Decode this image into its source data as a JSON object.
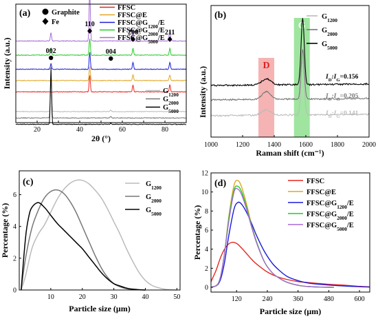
{
  "chart_data": [
    {
      "panel": "(a)",
      "type": "line",
      "xlabel": "2θ (°)",
      "ylabel": "Intensity (a.u.)",
      "xlim": [
        10,
        90
      ],
      "x_ticks": [
        "20",
        "40",
        "60",
        "80"
      ],
      "marker_legend": [
        {
          "label": "Graphite",
          "symbol": "circle"
        },
        {
          "label": "Fe",
          "symbol": "diamond"
        }
      ],
      "peak_labels": [
        {
          "text": "002",
          "x": 26.5,
          "symbol": "circle"
        },
        {
          "text": "110",
          "x": 44.7,
          "symbol": "diamond"
        },
        {
          "text": "004",
          "x": 54.6,
          "symbol": "circle"
        },
        {
          "text": "200",
          "x": 65.0,
          "symbol": "diamond"
        },
        {
          "text": "211",
          "x": 82.3,
          "symbol": "diamond"
        }
      ],
      "legend_upper": [
        {
          "name": "FFSC",
          "color": "#e8251f"
        },
        {
          "name": "FFSC@E",
          "color": "#e0a624"
        },
        {
          "name": "FFSC@G1200/E",
          "base": "FFSC@G",
          "sub": "1200",
          "tail": "/E",
          "color": "#1a1adb"
        },
        {
          "name": "FFSC@G2000/E",
          "base": "FFSC@G",
          "sub": "2000",
          "tail": "/E",
          "color": "#22cc22"
        },
        {
          "name": "FFSC@G5000/E",
          "base": "FFSC@G",
          "sub": "5000",
          "tail": "/E",
          "color": "#a56ad6"
        }
      ],
      "legend_lower": [
        {
          "name": "G1200",
          "base": "G",
          "sub": "1200",
          "color": "#bbbbbb"
        },
        {
          "name": "G2000",
          "base": "G",
          "sub": "2000",
          "color": "#777777"
        },
        {
          "name": "G5000",
          "base": "G",
          "sub": "5000",
          "color": "#000000"
        }
      ],
      "series": [
        {
          "name": "FFSC@G5000/E",
          "color": "#a56ad6",
          "baseline": 5.0,
          "peaks": [
            [
              26.5,
              0.6
            ],
            [
              44.7,
              3.6
            ],
            [
              65.0,
              0.8
            ],
            [
              82.3,
              0.8
            ]
          ]
        },
        {
          "name": "FFSC@G2000/E",
          "color": "#22cc22",
          "baseline": 4.0,
          "peaks": [
            [
              26.5,
              0.5
            ],
            [
              44.7,
              1.2
            ],
            [
              65.0,
              0.5
            ],
            [
              82.3,
              0.5
            ]
          ]
        },
        {
          "name": "FFSC@G1200/E",
          "color": "#1a1adb",
          "baseline": 3.0,
          "peaks": [
            [
              26.5,
              0.4
            ],
            [
              44.7,
              1.2
            ],
            [
              65.0,
              0.5
            ],
            [
              82.3,
              0.5
            ]
          ]
        },
        {
          "name": "FFSC@E",
          "color": "#e0a624",
          "baseline": 2.2,
          "peaks": [
            [
              44.7,
              1.0
            ],
            [
              65.0,
              0.4
            ],
            [
              82.3,
              0.4
            ]
          ]
        },
        {
          "name": "FFSC",
          "color": "#e8251f",
          "baseline": 1.4,
          "peaks": [
            [
              44.7,
              1.2
            ],
            [
              65.0,
              0.5
            ],
            [
              82.3,
              0.5
            ]
          ]
        },
        {
          "name": "G1200",
          "color": "#bbbbbb",
          "baseline": 0.0,
          "peaks": [
            [
              26.5,
              3.2
            ],
            [
              54.6,
              0.1
            ]
          ]
        },
        {
          "name": "G2000",
          "color": "#777777",
          "baseline": -0.45,
          "peaks": [
            [
              26.5,
              3.0
            ],
            [
              54.6,
              0.1
            ]
          ]
        },
        {
          "name": "G5000",
          "color": "#000000",
          "baseline": -0.9,
          "peaks": [
            [
              26.5,
              4.0
            ],
            [
              54.6,
              0.1
            ]
          ]
        }
      ]
    },
    {
      "panel": "(b)",
      "type": "line",
      "xlabel": "Raman shift (cm⁻¹)",
      "ylabel": "Intensity (a.u.)",
      "xlim": [
        1000,
        2000
      ],
      "x_ticks": [
        "1000",
        "1200",
        "1400",
        "1600",
        "1800",
        "2000"
      ],
      "bands": [
        {
          "label": "D",
          "from": 1300,
          "to": 1400,
          "color": "#f4a6a6",
          "text_color": "#e02020"
        },
        {
          "label": "G",
          "from": 1525,
          "to": 1625,
          "color": "#8ee08e",
          "text_color": "#ffffff"
        }
      ],
      "legend": [
        {
          "name": "G1200",
          "base": "G",
          "sub": "1200",
          "color": "#bbbbbb"
        },
        {
          "name": "G2000",
          "base": "G",
          "sub": "2000",
          "color": "#777777"
        },
        {
          "name": "G5000",
          "base": "G",
          "sub": "5000",
          "color": "#000000"
        }
      ],
      "ratio_labels": [
        {
          "series": "G5000",
          "text": "ID:IG=0.156",
          "value": "=0.156",
          "color": "#000000"
        },
        {
          "series": "G2000",
          "text": "ID:IG=0.205",
          "value": "=0.205",
          "color": "#777777"
        },
        {
          "series": "G1200",
          "text": "ID:IG=0.141",
          "value": "=0.141",
          "color": "#bbbbbb"
        }
      ],
      "series": [
        {
          "name": "G5000",
          "color": "#000000",
          "baseline": 2.0,
          "d_height": 0.45,
          "g_height": 2.7
        },
        {
          "name": "G2000",
          "color": "#777777",
          "baseline": 1.0,
          "d_height": 0.55,
          "g_height": 2.0
        },
        {
          "name": "G1200",
          "color": "#bbbbbb",
          "baseline": 0.0,
          "d_height": 0.4,
          "g_height": 2.2
        }
      ]
    },
    {
      "panel": "(c)",
      "type": "line",
      "xlabel": "Particle size (μm)",
      "ylabel": "Percentage (%)",
      "xlim": [
        0,
        51
      ],
      "ylim": [
        0,
        7.5
      ],
      "x_ticks": [
        10,
        20,
        30,
        40,
        50
      ],
      "y_ticks": [
        0,
        2,
        4,
        6
      ],
      "series": [
        {
          "name": "G1200",
          "base": "G",
          "sub": "1200",
          "color": "#bbbbbb",
          "x": [
            0.6,
            2,
            4,
            6,
            8,
            10,
            12,
            14,
            16,
            18,
            20,
            22,
            24,
            26,
            28,
            30,
            32,
            34,
            36,
            38,
            40,
            42,
            44,
            46,
            48,
            50
          ],
          "y": [
            0,
            0.9,
            2.6,
            3.5,
            4.1,
            4.9,
            5.7,
            6.3,
            6.7,
            6.9,
            6.9,
            6.7,
            6.3,
            5.8,
            5.1,
            4.3,
            3.5,
            2.6,
            1.8,
            1.1,
            0.6,
            0.3,
            0.15,
            0.05,
            0.02,
            0
          ]
        },
        {
          "name": "G2000",
          "base": "G",
          "sub": "2000",
          "color": "#777777",
          "x": [
            0.6,
            2,
            4,
            6,
            8,
            10,
            12,
            14,
            16,
            18,
            20,
            22,
            24,
            26,
            28,
            30,
            32,
            34,
            36,
            38,
            40
          ],
          "y": [
            0,
            2.0,
            3.9,
            5.0,
            5.8,
            6.2,
            6.3,
            6.1,
            5.6,
            4.9,
            4.0,
            3.1,
            2.2,
            1.4,
            0.8,
            0.4,
            0.2,
            0.08,
            0.03,
            0.01,
            0
          ]
        },
        {
          "name": "G5000",
          "base": "G",
          "sub": "5000",
          "color": "#000000",
          "x": [
            0.6,
            2,
            3,
            4,
            6,
            8,
            10,
            12,
            14,
            16,
            18,
            20,
            22,
            24,
            26,
            28,
            30,
            32,
            34,
            36,
            38,
            40
          ],
          "y": [
            0,
            3.3,
            4.6,
            5.2,
            5.5,
            5.2,
            4.7,
            4.2,
            3.8,
            3.4,
            3.0,
            2.6,
            2.1,
            1.6,
            1.1,
            0.7,
            0.4,
            0.25,
            0.12,
            0.05,
            0.02,
            0
          ]
        }
      ]
    },
    {
      "panel": "(d)",
      "type": "line",
      "xlabel": "Particle size (μm)",
      "ylabel": "Percentage (%)",
      "xlim": [
        20,
        640
      ],
      "ylim": [
        -0.5,
        12
      ],
      "x_ticks": [
        120,
        240,
        360,
        480,
        600
      ],
      "y_ticks": [
        0,
        2,
        4,
        6,
        8,
        10,
        12
      ],
      "series": [
        {
          "name": "FFSC",
          "base": "FFSC",
          "color": "#e8251f",
          "x": [
            20,
            40,
            60,
            80,
            100,
            120,
            140,
            160,
            180,
            200,
            240,
            280,
            320,
            360,
            400,
            440,
            480,
            520,
            560,
            600,
            640
          ],
          "y": [
            0.6,
            1.8,
            3.3,
            4.3,
            4.7,
            4.6,
            4.1,
            3.5,
            2.9,
            2.4,
            1.6,
            1.1,
            0.8,
            0.6,
            0.5,
            0.4,
            0.32,
            0.25,
            0.18,
            0.1,
            0.05
          ]
        },
        {
          "name": "FFSC@E",
          "base": "FFSC@E",
          "color": "#e0a624",
          "x": [
            20,
            50,
            70,
            90,
            110,
            125,
            140,
            160,
            180,
            200,
            230,
            260,
            290,
            320,
            360,
            400,
            450,
            500
          ],
          "y": [
            0,
            0.5,
            3.0,
            7.5,
            10.7,
            11.2,
            10.5,
            8.6,
            6.4,
            4.6,
            2.6,
            1.5,
            0.9,
            0.5,
            0.2,
            0.08,
            0.02,
            0
          ]
        },
        {
          "name": "FFSC@G1200/E",
          "base": "FFSC@G",
          "sub": "1200",
          "tail": "/E",
          "color": "#1a1adb",
          "x": [
            20,
            50,
            70,
            90,
            110,
            125,
            140,
            160,
            180,
            200,
            230,
            260,
            290,
            320,
            360,
            400,
            450,
            500,
            550,
            600,
            640
          ],
          "y": [
            0,
            0.4,
            2.2,
            5.5,
            8.2,
            8.9,
            8.7,
            7.8,
            6.6,
            5.3,
            3.7,
            2.5,
            1.7,
            1.1,
            0.7,
            0.45,
            0.3,
            0.2,
            0.12,
            0.06,
            0.03
          ]
        },
        {
          "name": "FFSC@G2000/E",
          "base": "FFSC@G",
          "sub": "2000",
          "tail": "/E",
          "color": "#22cc22",
          "x": [
            20,
            50,
            70,
            90,
            110,
            125,
            140,
            160,
            180,
            200,
            230,
            260,
            290,
            320,
            360,
            400,
            450,
            500
          ],
          "y": [
            0,
            0.5,
            3.0,
            7.3,
            10.2,
            10.6,
            10.0,
            8.3,
            6.3,
            4.6,
            2.6,
            1.5,
            0.9,
            0.5,
            0.22,
            0.08,
            0.02,
            0
          ]
        },
        {
          "name": "FFSC@G5000/E",
          "base": "FFSC@G",
          "sub": "5000",
          "tail": "/E",
          "color": "#a56ad6",
          "x": [
            20,
            50,
            70,
            90,
            110,
            125,
            140,
            160,
            180,
            200,
            230,
            260,
            290,
            320,
            360,
            400,
            450,
            500
          ],
          "y": [
            0,
            0.5,
            3.0,
            7.0,
            10.0,
            10.3,
            9.7,
            8.1,
            6.2,
            4.5,
            2.6,
            1.5,
            0.9,
            0.5,
            0.22,
            0.08,
            0.02,
            0
          ]
        }
      ]
    }
  ]
}
